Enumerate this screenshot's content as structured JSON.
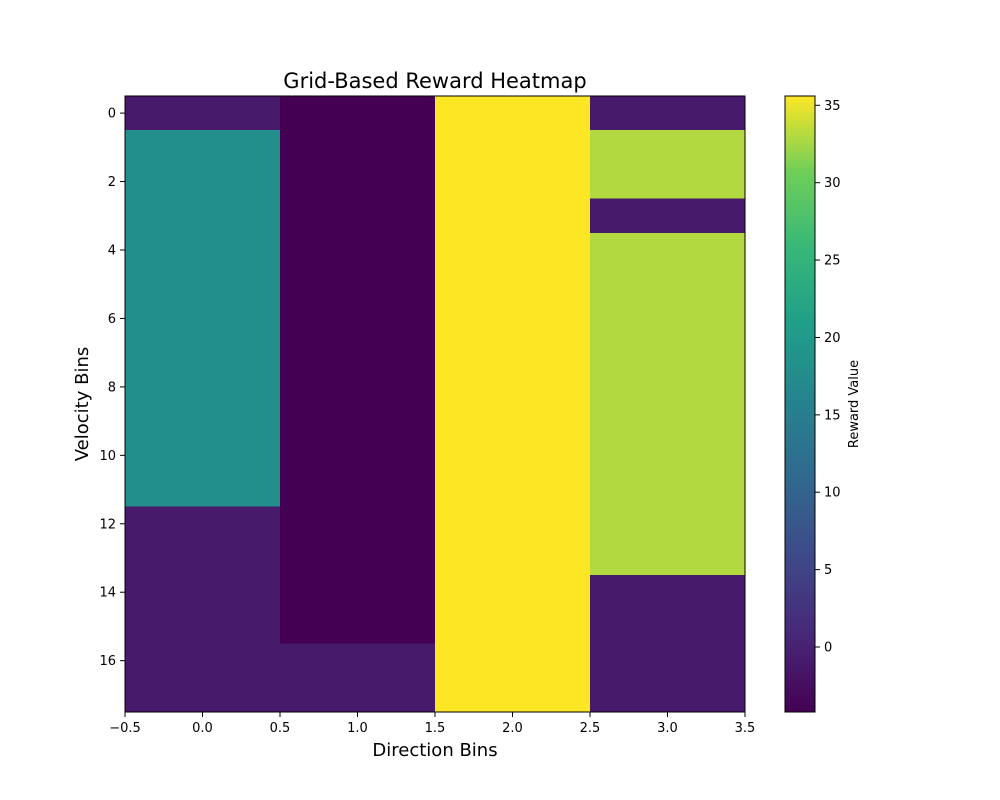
{
  "chart_data": {
    "type": "heatmap",
    "title": "Grid-Based Reward Heatmap",
    "xlabel": "Direction Bins",
    "ylabel": "Velocity Bins",
    "colorbar_label": "Reward Value",
    "colormap": "viridis",
    "vmin": -4.2,
    "vmax": 35.6,
    "x_range": [
      -0.5,
      3.5
    ],
    "y_range": [
      17.5,
      -0.5
    ],
    "x_ticks": [
      -0.5,
      0.0,
      0.5,
      1.0,
      1.5,
      2.0,
      2.5,
      3.0,
      3.5
    ],
    "x_tick_labels": [
      "−0.5",
      "0.0",
      "0.5",
      "1.0",
      "1.5",
      "2.0",
      "2.5",
      "3.0",
      "3.5"
    ],
    "y_ticks": [
      0,
      2,
      4,
      6,
      8,
      10,
      12,
      14,
      16
    ],
    "y_tick_labels": [
      "0",
      "2",
      "4",
      "6",
      "8",
      "10",
      "12",
      "14",
      "16"
    ],
    "colorbar_ticks": [
      0,
      5,
      10,
      15,
      20,
      25,
      30,
      35
    ],
    "colorbar_tick_labels": [
      "0",
      "5",
      "10",
      "15",
      "20",
      "25",
      "30",
      "35"
    ],
    "columns": [
      0,
      1,
      2,
      3
    ],
    "rows": [
      0,
      1,
      2,
      3,
      4,
      5,
      6,
      7,
      8,
      9,
      10,
      11,
      12,
      13,
      14,
      15,
      16,
      17
    ],
    "values": [
      [
        -1,
        -4.2,
        35.6,
        -1
      ],
      [
        18,
        -4.2,
        35.6,
        33
      ],
      [
        18,
        -4.2,
        35.6,
        33
      ],
      [
        18,
        -4.2,
        35.6,
        -1
      ],
      [
        18,
        -4.2,
        35.6,
        33
      ],
      [
        18,
        -4.2,
        35.6,
        33
      ],
      [
        18,
        -4.2,
        35.6,
        33
      ],
      [
        18,
        -4.2,
        35.6,
        33
      ],
      [
        18,
        -4.2,
        35.6,
        33
      ],
      [
        18,
        -4.2,
        35.6,
        33
      ],
      [
        18,
        -4.2,
        35.6,
        33
      ],
      [
        18,
        -4.2,
        35.6,
        33
      ],
      [
        -1,
        -4.2,
        35.6,
        33
      ],
      [
        -1,
        -4.2,
        35.6,
        33
      ],
      [
        -1,
        -4.2,
        35.6,
        -1
      ],
      [
        -1,
        -4.2,
        35.6,
        -1
      ],
      [
        -1,
        -1,
        35.6,
        -1
      ],
      [
        -1,
        -1,
        35.6,
        -1
      ]
    ]
  }
}
